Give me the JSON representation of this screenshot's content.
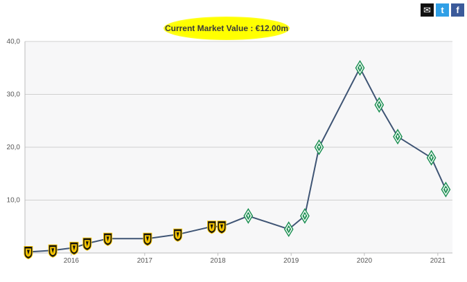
{
  "share": {
    "email_glyph": "✉",
    "twitter_glyph": "t",
    "facebook_glyph": "f",
    "icons": [
      "email-icon",
      "twitter-icon",
      "facebook-icon"
    ]
  },
  "chart_data": {
    "type": "line",
    "title": "Current Market Value : €12.00m",
    "xlabel": "",
    "ylabel": "",
    "ylim": [
      0,
      40
    ],
    "xlim": [
      "2015-05-15",
      "2021-03-15"
    ],
    "y_ticks": [
      "10,0",
      "20,0",
      "30,0",
      "40,0"
    ],
    "y_tick_values": [
      10,
      20,
      30,
      40
    ],
    "x_ticks": [
      "2016",
      "2017",
      "2018",
      "2019",
      "2020",
      "2021"
    ],
    "x_tick_dates": [
      "2016-01-01",
      "2017-01-01",
      "2018-01-01",
      "2019-01-01",
      "2020-01-01",
      "2021-01-01"
    ],
    "grid": true,
    "line_color": "#3e5474",
    "marker_clubs": {
      "vitesse": {
        "colors": [
          "#f5c400",
          "#111111"
        ]
      },
      "werder": {
        "colors": [
          "#1d9053",
          "#ffffff"
        ]
      }
    },
    "series": [
      {
        "points": [
          {
            "date": "2015-06-01",
            "value": 0.2,
            "club": "vitesse"
          },
          {
            "date": "2015-10-01",
            "value": 0.5,
            "club": "vitesse"
          },
          {
            "date": "2016-01-15",
            "value": 1.0,
            "club": "vitesse"
          },
          {
            "date": "2016-03-20",
            "value": 1.8,
            "club": "vitesse"
          },
          {
            "date": "2016-07-01",
            "value": 2.7,
            "club": "vitesse"
          },
          {
            "date": "2017-01-15",
            "value": 2.7,
            "club": "vitesse"
          },
          {
            "date": "2017-06-15",
            "value": 3.5,
            "club": "vitesse"
          },
          {
            "date": "2017-12-01",
            "value": 5.0,
            "club": "vitesse"
          },
          {
            "date": "2018-01-20",
            "value": 5.0,
            "club": "vitesse"
          },
          {
            "date": "2018-06-01",
            "value": 7.0,
            "club": "werder"
          },
          {
            "date": "2018-12-20",
            "value": 4.5,
            "club": "werder"
          },
          {
            "date": "2019-03-10",
            "value": 7.0,
            "club": "werder"
          },
          {
            "date": "2019-05-20",
            "value": 20.0,
            "club": "werder"
          },
          {
            "date": "2019-12-10",
            "value": 35.0,
            "club": "werder"
          },
          {
            "date": "2020-03-15",
            "value": 28.0,
            "club": "werder"
          },
          {
            "date": "2020-06-15",
            "value": 22.0,
            "club": "werder"
          },
          {
            "date": "2020-11-30",
            "value": 18.0,
            "club": "werder"
          },
          {
            "date": "2021-02-10",
            "value": 12.0,
            "club": "werder"
          }
        ]
      }
    ]
  }
}
